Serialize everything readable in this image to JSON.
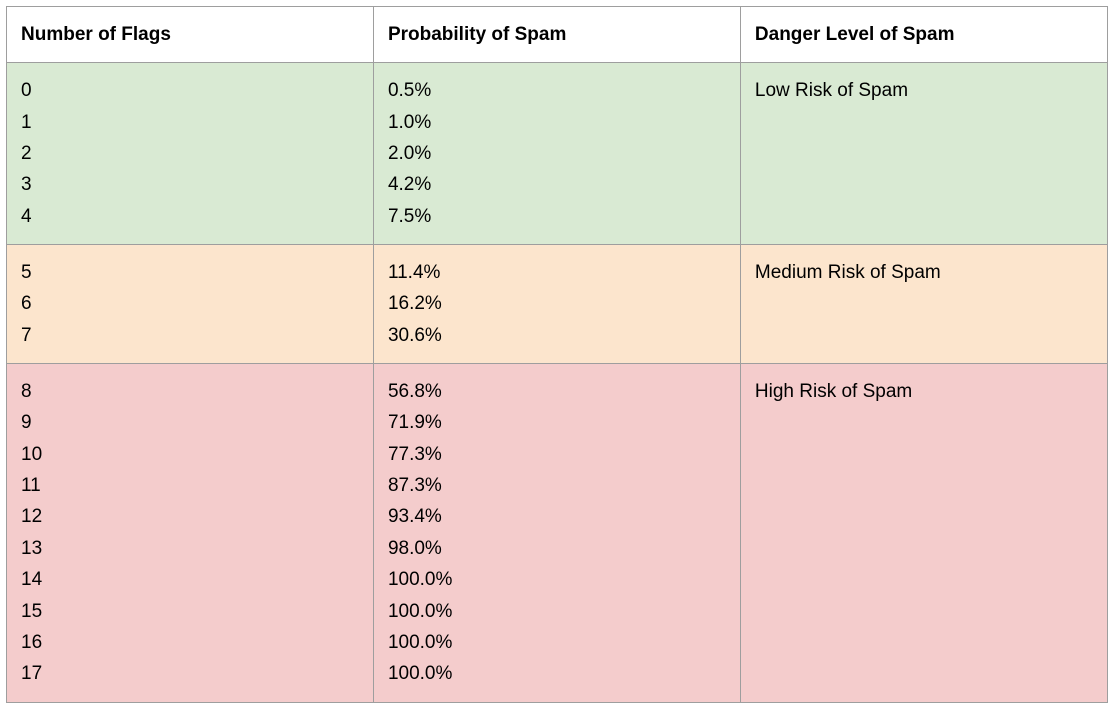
{
  "table": {
    "type": "table",
    "border_color": "#9e9e9e",
    "text_color": "#000000",
    "font_size_pt": 14,
    "col_widths_pct": [
      33.33,
      33.33,
      33.34
    ],
    "columns": [
      "Number of Flags",
      "Probability of Spam",
      "Danger Level of Spam"
    ],
    "groups": [
      {
        "bg_color": "#d9ead3",
        "danger_label": "Low Risk of Spam",
        "flags": [
          "0",
          "1",
          "2",
          "3",
          "4"
        ],
        "probs": [
          "0.5%",
          "1.0%",
          "2.0%",
          "4.2%",
          "7.5%"
        ]
      },
      {
        "bg_color": "#fce5cd",
        "danger_label": "Medium Risk of Spam",
        "flags": [
          "5",
          "6",
          "7"
        ],
        "probs": [
          "11.4%",
          "16.2%",
          "30.6%"
        ]
      },
      {
        "bg_color": "#f4cccc",
        "danger_label": "High Risk of Spam",
        "flags": [
          "8",
          "9",
          "10",
          "11",
          "12",
          "13",
          "14",
          "15",
          "16",
          "17"
        ],
        "probs": [
          "56.8%",
          "71.9%",
          "77.3%",
          "87.3%",
          "93.4%",
          "98.0%",
          "100.0%",
          "100.0%",
          "100.0%",
          "100.0%"
        ]
      }
    ]
  }
}
